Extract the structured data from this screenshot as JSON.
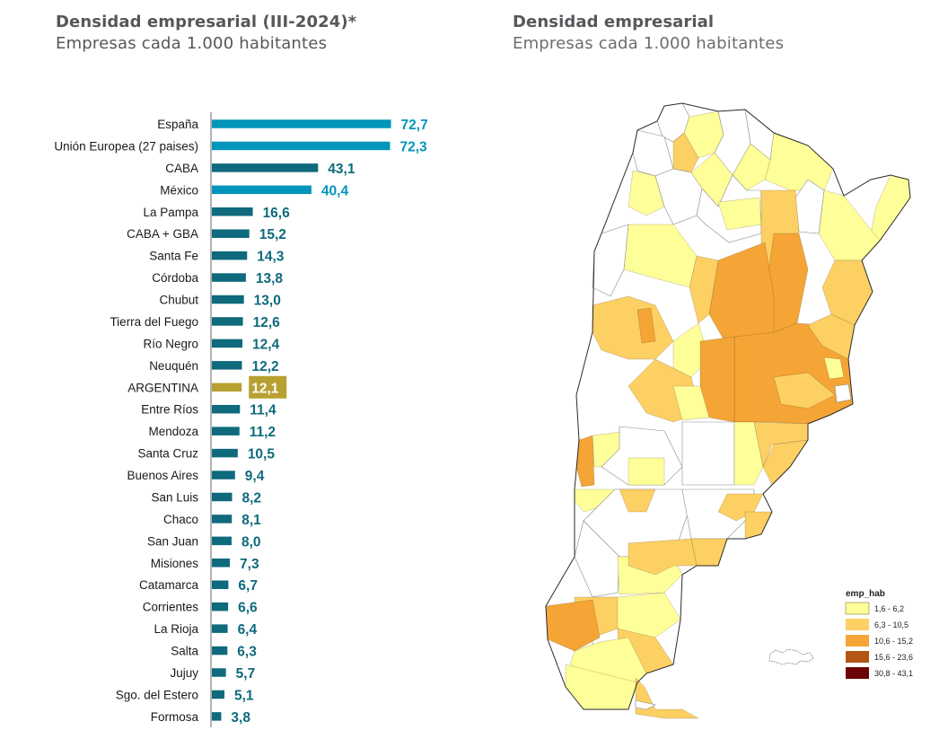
{
  "left_panel": {
    "title": "Densidad empresarial (III-2024)*",
    "subtitle": "Empresas cada 1.000 habitantes"
  },
  "right_panel": {
    "title": "Densidad empresarial",
    "subtitle": "Empresas cada 1.000 habitantes"
  },
  "colors": {
    "international": "#0095bb",
    "province": "#0e6a7c",
    "argentina": "#b8a030",
    "argentina_label_text": "#ffffff",
    "axis": "#9a9a9a"
  },
  "chart_data": [
    {
      "type": "bar",
      "orientation": "horizontal",
      "title": "Densidad empresarial (III-2024)*",
      "subtitle": "Empresas cada 1.000 habitantes",
      "xlabel": "",
      "ylabel": "",
      "xlim": [
        0,
        80
      ],
      "grid": false,
      "categories": [
        "España",
        "Unión Europea (27 paises)",
        "CABA",
        "México",
        "La Pampa",
        "CABA + GBA",
        "Santa Fe",
        "Córdoba",
        "Chubut",
        "Tierra del Fuego",
        "Río Negro",
        "Neuquén",
        "ARGENTINA",
        "Entre Ríos",
        "Mendoza",
        "Santa Cruz",
        "Buenos Aires",
        "San Luis",
        "Chaco",
        "San Juan",
        "Misiones",
        "Catamarca",
        "Corrientes",
        "La Rioja",
        "Salta",
        "Jujuy",
        "Sgo. del Estero",
        "Formosa"
      ],
      "values": [
        72.7,
        72.3,
        43.1,
        40.4,
        16.6,
        15.2,
        14.3,
        13.8,
        13.0,
        12.6,
        12.4,
        12.2,
        12.1,
        11.4,
        11.2,
        10.5,
        9.4,
        8.2,
        8.1,
        8.0,
        7.3,
        6.7,
        6.6,
        6.4,
        6.3,
        5.7,
        5.1,
        3.8
      ],
      "value_labels": [
        "72,7",
        "72,3",
        "43,1",
        "40,4",
        "16,6",
        "15,2",
        "14,3",
        "13,8",
        "13,0",
        "12,6",
        "12,4",
        "12,2",
        "12,1",
        "11,4",
        "11,2",
        "10,5",
        "9,4",
        "8,2",
        "8,1",
        "8,0",
        "7,3",
        "6,7",
        "6,6",
        "6,4",
        "6,3",
        "5,7",
        "5,1",
        "3,8"
      ],
      "groups": [
        "international",
        "international",
        "province",
        "international",
        "province",
        "province",
        "province",
        "province",
        "province",
        "province",
        "province",
        "province",
        "argentina",
        "province",
        "province",
        "province",
        "province",
        "province",
        "province",
        "province",
        "province",
        "province",
        "province",
        "province",
        "province",
        "province",
        "province",
        "province"
      ]
    },
    {
      "type": "choropleth",
      "title": "Densidad empresarial",
      "subtitle": "Empresas cada 1.000 habitantes",
      "legend_title": "emp_hab",
      "legend_position": "bottom-right",
      "classes": [
        {
          "label": "1,6 - 6,2",
          "range": [
            1.6,
            6.2
          ],
          "color": "#ffff99"
        },
        {
          "label": "6,3 - 10,5",
          "range": [
            6.3,
            10.5
          ],
          "color": "#fdd063"
        },
        {
          "label": "10,6 - 15,2",
          "range": [
            10.6,
            15.2
          ],
          "color": "#f4a535"
        },
        {
          "label": "15,6 - 23,6",
          "range": [
            15.6,
            23.6
          ],
          "color": "#b35614"
        },
        {
          "label": "30,8 - 43,1",
          "range": [
            30.8,
            43.1
          ],
          "color": "#6b0505"
        }
      ]
    }
  ]
}
